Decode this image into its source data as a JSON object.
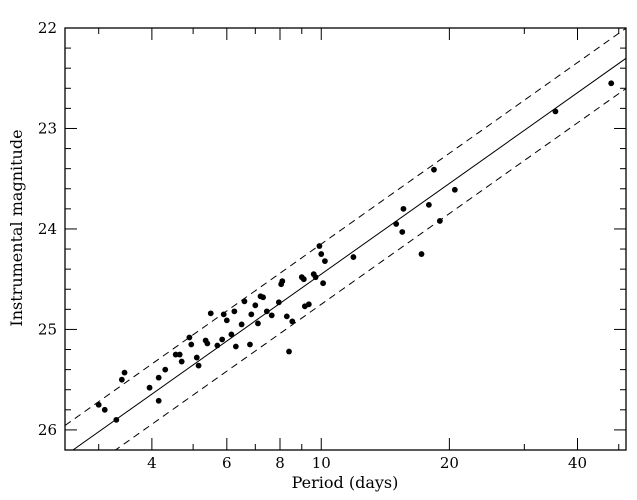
{
  "chart_data": {
    "type": "scatter",
    "title": "",
    "xlabel": "Period (days)",
    "ylabel": "Instrumental magnitude",
    "x_scale": "log",
    "x_range": [
      2.5,
      52
    ],
    "y_range": [
      22,
      26.2
    ],
    "y_inverted": true,
    "x_ticks": [
      4,
      6,
      8,
      10,
      20,
      40
    ],
    "x_tick_labels": [
      "4",
      "6",
      "8",
      "10",
      "20",
      "40"
    ],
    "y_ticks": [
      22,
      23,
      24,
      25,
      26
    ],
    "y_tick_labels": [
      "22",
      "23",
      "24",
      "25",
      "26"
    ],
    "grid": false,
    "legend": "none",
    "fit_line": {
      "slope": -3.0,
      "intercept": 27.45,
      "style": "solid"
    },
    "bounds": [
      {
        "slope": -3.0,
        "intercept": 27.15,
        "style": "dashed"
      },
      {
        "slope": -3.0,
        "intercept": 27.75,
        "style": "dashed"
      }
    ],
    "points": [
      {
        "x": 3.0,
        "y": 25.75
      },
      {
        "x": 3.1,
        "y": 25.8
      },
      {
        "x": 3.3,
        "y": 25.9
      },
      {
        "x": 3.4,
        "y": 25.5
      },
      {
        "x": 3.45,
        "y": 25.43
      },
      {
        "x": 3.95,
        "y": 25.58
      },
      {
        "x": 4.15,
        "y": 25.48
      },
      {
        "x": 4.15,
        "y": 25.71
      },
      {
        "x": 4.3,
        "y": 25.4
      },
      {
        "x": 4.55,
        "y": 25.25
      },
      {
        "x": 4.65,
        "y": 25.25
      },
      {
        "x": 4.7,
        "y": 25.32
      },
      {
        "x": 4.9,
        "y": 25.08
      },
      {
        "x": 4.95,
        "y": 25.15
      },
      {
        "x": 5.1,
        "y": 25.28
      },
      {
        "x": 5.15,
        "y": 25.36
      },
      {
        "x": 5.35,
        "y": 25.11
      },
      {
        "x": 5.4,
        "y": 25.14
      },
      {
        "x": 5.5,
        "y": 24.84
      },
      {
        "x": 5.7,
        "y": 25.16
      },
      {
        "x": 5.85,
        "y": 25.1
      },
      {
        "x": 5.9,
        "y": 24.85
      },
      {
        "x": 6.0,
        "y": 24.91
      },
      {
        "x": 6.15,
        "y": 25.05
      },
      {
        "x": 6.25,
        "y": 24.82
      },
      {
        "x": 6.3,
        "y": 25.17
      },
      {
        "x": 6.5,
        "y": 24.95
      },
      {
        "x": 6.6,
        "y": 24.72
      },
      {
        "x": 6.8,
        "y": 25.15
      },
      {
        "x": 6.85,
        "y": 24.85
      },
      {
        "x": 7.0,
        "y": 24.76
      },
      {
        "x": 7.1,
        "y": 24.94
      },
      {
        "x": 7.2,
        "y": 24.67
      },
      {
        "x": 7.3,
        "y": 24.68
      },
      {
        "x": 7.45,
        "y": 24.82
      },
      {
        "x": 7.65,
        "y": 24.86
      },
      {
        "x": 7.95,
        "y": 24.73
      },
      {
        "x": 8.05,
        "y": 24.55
      },
      {
        "x": 8.1,
        "y": 24.52
      },
      {
        "x": 8.3,
        "y": 24.87
      },
      {
        "x": 8.4,
        "y": 25.22
      },
      {
        "x": 8.55,
        "y": 24.92
      },
      {
        "x": 9.0,
        "y": 24.48
      },
      {
        "x": 9.1,
        "y": 24.5
      },
      {
        "x": 9.15,
        "y": 24.77
      },
      {
        "x": 9.35,
        "y": 24.75
      },
      {
        "x": 9.6,
        "y": 24.45
      },
      {
        "x": 9.7,
        "y": 24.48
      },
      {
        "x": 9.9,
        "y": 24.17
      },
      {
        "x": 10.0,
        "y": 24.25
      },
      {
        "x": 10.1,
        "y": 24.54
      },
      {
        "x": 10.2,
        "y": 24.32
      },
      {
        "x": 11.9,
        "y": 24.28
      },
      {
        "x": 15.0,
        "y": 23.95
      },
      {
        "x": 15.5,
        "y": 24.03
      },
      {
        "x": 15.6,
        "y": 23.8
      },
      {
        "x": 17.2,
        "y": 24.25
      },
      {
        "x": 17.9,
        "y": 23.76
      },
      {
        "x": 18.4,
        "y": 23.41
      },
      {
        "x": 19.0,
        "y": 23.92
      },
      {
        "x": 20.6,
        "y": 23.61
      },
      {
        "x": 35.5,
        "y": 22.83
      },
      {
        "x": 48.0,
        "y": 22.55
      }
    ]
  }
}
